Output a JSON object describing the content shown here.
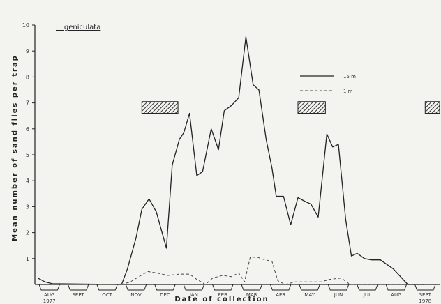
{
  "chart_data": {
    "type": "line",
    "title": "L. geniculata",
    "xlabel": "Date of collection",
    "ylabel": "Mean number of sand flies per trap",
    "ylim": [
      0,
      10
    ],
    "yticks": [
      1,
      2,
      3,
      4,
      5,
      6,
      7,
      8,
      9,
      10
    ],
    "months": [
      {
        "label": "AUG",
        "year": "1977",
        "start": 0,
        "end": 1
      },
      {
        "label": "SEPT",
        "start": 1,
        "end": 2
      },
      {
        "label": "OCT",
        "start": 2,
        "end": 3
      },
      {
        "label": "NOV",
        "start": 3,
        "end": 4
      },
      {
        "label": "DEC",
        "start": 4,
        "end": 5
      },
      {
        "label": "JAN",
        "start": 5,
        "end": 6
      },
      {
        "label": "FEB",
        "start": 6,
        "end": 7
      },
      {
        "label": "MAR",
        "start": 7,
        "end": 8
      },
      {
        "label": "APR",
        "start": 8,
        "end": 9
      },
      {
        "label": "MAY",
        "start": 9,
        "end": 10
      },
      {
        "label": "JUN",
        "start": 10,
        "end": 11
      },
      {
        "label": "JUL",
        "start": 11,
        "end": 12
      },
      {
        "label": "AUG",
        "start": 12,
        "end": 13
      },
      {
        "label": "SEPT",
        "year": "1978",
        "start": 13,
        "end": 14
      }
    ],
    "legend_position": "top-right",
    "series": [
      {
        "name": "15 m",
        "style": "solid",
        "color": "#222222",
        "points": [
          [
            0.1,
            0.25
          ],
          [
            0.35,
            0.1
          ],
          [
            0.6,
            0.03
          ],
          [
            3.0,
            0.0
          ],
          [
            3.2,
            0.6
          ],
          [
            3.5,
            1.8
          ],
          [
            3.7,
            2.9
          ],
          [
            3.95,
            3.3
          ],
          [
            4.2,
            2.8
          ],
          [
            4.55,
            1.4
          ],
          [
            4.75,
            4.6
          ],
          [
            5.0,
            5.6
          ],
          [
            5.15,
            5.85
          ],
          [
            5.35,
            6.6
          ],
          [
            5.6,
            4.2
          ],
          [
            5.8,
            4.35
          ],
          [
            6.1,
            6.0
          ],
          [
            6.35,
            5.2
          ],
          [
            6.55,
            6.7
          ],
          [
            6.8,
            6.9
          ],
          [
            7.05,
            7.2
          ],
          [
            7.3,
            9.55
          ],
          [
            7.55,
            7.7
          ],
          [
            7.75,
            7.5
          ],
          [
            8.0,
            5.6
          ],
          [
            8.2,
            4.5
          ],
          [
            8.35,
            3.4
          ],
          [
            8.6,
            3.4
          ],
          [
            8.85,
            2.3
          ],
          [
            9.1,
            3.35
          ],
          [
            9.35,
            3.2
          ],
          [
            9.55,
            3.1
          ],
          [
            9.8,
            2.6
          ],
          [
            10.1,
            5.8
          ],
          [
            10.3,
            5.3
          ],
          [
            10.5,
            5.4
          ],
          [
            10.75,
            2.5
          ],
          [
            10.95,
            1.1
          ],
          [
            11.15,
            1.2
          ],
          [
            11.4,
            1.0
          ],
          [
            11.65,
            0.95
          ],
          [
            11.95,
            0.95
          ],
          [
            12.4,
            0.6
          ],
          [
            12.9,
            0.0
          ],
          [
            13.5,
            0.0
          ]
        ]
      },
      {
        "name": "1 m",
        "style": "dashed",
        "color": "#444444",
        "points": [
          [
            3.0,
            0.0
          ],
          [
            3.3,
            0.1
          ],
          [
            3.6,
            0.3
          ],
          [
            3.9,
            0.5
          ],
          [
            4.2,
            0.45
          ],
          [
            4.6,
            0.35
          ],
          [
            5.0,
            0.4
          ],
          [
            5.35,
            0.4
          ],
          [
            5.6,
            0.2
          ],
          [
            5.9,
            0.0
          ],
          [
            6.15,
            0.25
          ],
          [
            6.5,
            0.35
          ],
          [
            6.8,
            0.3
          ],
          [
            7.05,
            0.45
          ],
          [
            7.25,
            0.1
          ],
          [
            7.45,
            1.05
          ],
          [
            7.7,
            1.05
          ],
          [
            7.95,
            0.95
          ],
          [
            8.2,
            0.9
          ],
          [
            8.4,
            0.15
          ],
          [
            8.65,
            0.0
          ],
          [
            9.0,
            0.1
          ],
          [
            9.5,
            0.1
          ],
          [
            9.9,
            0.1
          ],
          [
            10.2,
            0.2
          ],
          [
            10.6,
            0.25
          ],
          [
            10.9,
            0.0
          ],
          [
            13.5,
            0.0
          ]
        ]
      }
    ],
    "hatched_periods": [
      {
        "start": 3.7,
        "end": 4.95,
        "y": 6.8
      },
      {
        "start": 9.1,
        "end": 10.05,
        "y": 6.8
      },
      {
        "start": 13.5,
        "end": 14.3,
        "y": 6.8
      }
    ]
  }
}
